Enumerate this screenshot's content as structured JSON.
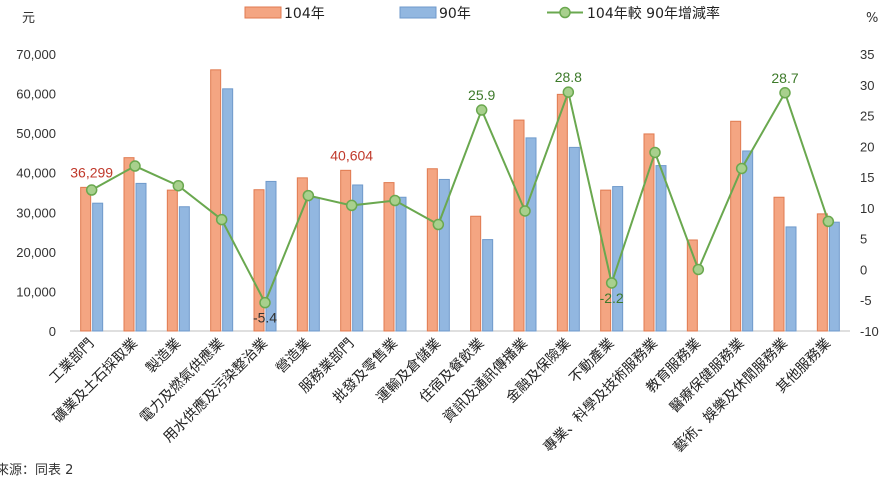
{
  "chart_data": {
    "type": "bar",
    "categories": [
      "工業部門",
      "礦業及土石採取業",
      "製造業",
      "電力及燃氣供應業",
      "用水供應及污染整治業",
      "營造業",
      "服務業部門",
      "批發及零售業",
      "運輸及倉儲業",
      "住宿及餐飲業",
      "資訊及通訊傳播業",
      "金融及保險業",
      "不動產業",
      "專業、科學及技術服務業",
      "教育服務業",
      "醫療保健服務業",
      "藝術、娛樂及休閒服務業",
      "其他服務業"
    ],
    "series": [
      {
        "name": "104年",
        "type": "bar",
        "axis": "left",
        "color": "#f4a582",
        "values": [
          36299,
          43800,
          35600,
          66000,
          35700,
          38700,
          40604,
          37500,
          41000,
          29000,
          53300,
          59800,
          35600,
          49800,
          23000,
          53000,
          33800,
          29600
        ]
      },
      {
        "name": "90年",
        "type": "bar",
        "axis": "left",
        "color": "#92b7e0",
        "values": [
          32300,
          37300,
          31400,
          61200,
          37800,
          33700,
          36900,
          33800,
          38300,
          23100,
          48800,
          46400,
          36500,
          41800,
          null,
          45500,
          26300,
          27500
        ]
      },
      {
        "name": "104年較 90年增減率",
        "type": "line",
        "axis": "right",
        "color": "#6aa84f",
        "values": [
          12.9,
          16.8,
          13.6,
          8.1,
          -5.4,
          12.0,
          10.4,
          11.2,
          7.3,
          25.9,
          9.5,
          28.8,
          -2.2,
          19.0,
          0.0,
          16.4,
          28.7,
          7.8
        ]
      }
    ],
    "y_left": {
      "unit": "元",
      "range": [
        0,
        70000
      ],
      "ticks": [
        "0",
        "10,000",
        "20,000",
        "30,000",
        "40,000",
        "50,000",
        "60,000",
        "70,000"
      ]
    },
    "y_right": {
      "unit": "%",
      "range": [
        -10,
        35
      ],
      "ticks": [
        "-10",
        "-5",
        "0",
        "5",
        "10",
        "15",
        "20",
        "25",
        "30",
        "35"
      ]
    },
    "grid": false,
    "legend_position": "top",
    "annotations": [
      {
        "series": 0,
        "index": 0,
        "text": "36,299",
        "color": "#c0392b"
      },
      {
        "series": 0,
        "index": 6,
        "text": "40,604",
        "color": "#c0392b"
      },
      {
        "series": 2,
        "index": 4,
        "text": "-5.4",
        "color": "#333333"
      },
      {
        "series": 2,
        "index": 9,
        "text": "25.9",
        "color": "#3d7a2a"
      },
      {
        "series": 2,
        "index": 11,
        "text": "28.8",
        "color": "#3d7a2a"
      },
      {
        "series": 2,
        "index": 12,
        "text": "-2.2",
        "color": "#3d7a2a"
      },
      {
        "series": 2,
        "index": 16,
        "text": "28.7",
        "color": "#3d7a2a"
      }
    ]
  },
  "source_text": "來源：同表 2"
}
